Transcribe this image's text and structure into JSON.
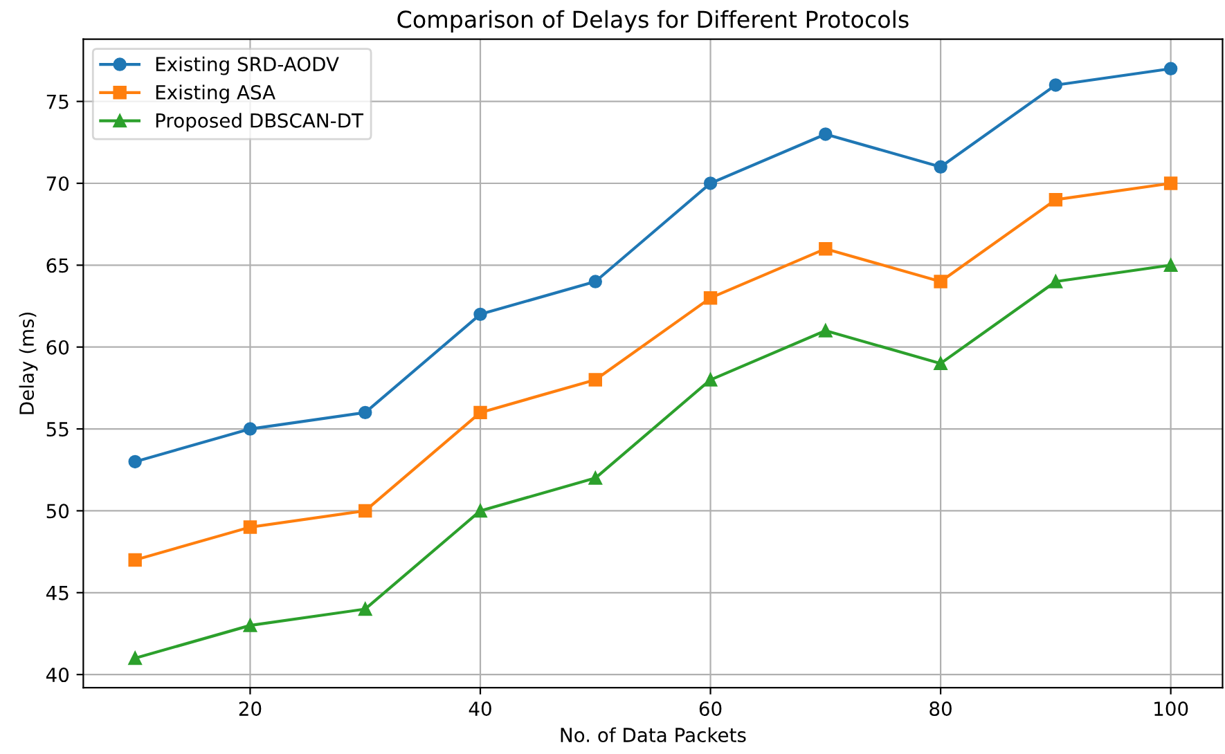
{
  "chart_data": {
    "type": "line",
    "title": "Comparison of Delays for Different Protocols",
    "xlabel": "No. of Data Packets",
    "ylabel": "Delay (ms)",
    "x": [
      10,
      20,
      30,
      40,
      50,
      60,
      70,
      80,
      90,
      100
    ],
    "series": [
      {
        "name": "Existing SRD-AODV",
        "color": "#1f77b4",
        "marker": "circle",
        "values": [
          53,
          55,
          56,
          62,
          64,
          70,
          73,
          71,
          76,
          77
        ]
      },
      {
        "name": "Existing ASA",
        "color": "#ff7f0e",
        "marker": "square",
        "values": [
          47,
          49,
          50,
          56,
          58,
          63,
          66,
          64,
          69,
          70
        ]
      },
      {
        "name": "Proposed DBSCAN-DT",
        "color": "#2ca02c",
        "marker": "triangle",
        "values": [
          41,
          43,
          44,
          50,
          52,
          58,
          61,
          59,
          64,
          65
        ]
      }
    ],
    "xlim": [
      5.5,
      104.5
    ],
    "xticks": [
      20,
      40,
      60,
      80,
      100
    ],
    "ylim": [
      39.2,
      78.8
    ],
    "yticks": [
      40,
      45,
      50,
      55,
      60,
      65,
      70,
      75
    ],
    "grid": true,
    "legend": "top left",
    "line_style": "solid"
  }
}
